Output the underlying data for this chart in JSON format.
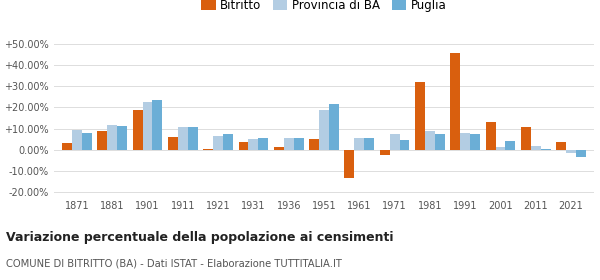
{
  "years": [
    1871,
    1881,
    1901,
    1911,
    1921,
    1931,
    1936,
    1951,
    1961,
    1971,
    1981,
    1991,
    2001,
    2011,
    2021
  ],
  "bitritto": [
    3.0,
    9.0,
    19.0,
    6.0,
    0.5,
    3.5,
    1.0,
    5.0,
    -13.5,
    -2.5,
    32.0,
    46.0,
    13.0,
    10.5,
    3.5
  ],
  "provincia_ba": [
    9.5,
    11.5,
    22.5,
    10.5,
    6.5,
    5.0,
    5.5,
    19.0,
    5.5,
    7.5,
    9.0,
    8.0,
    1.0,
    1.5,
    -1.5
  ],
  "puglia": [
    8.0,
    11.0,
    23.5,
    10.5,
    7.5,
    5.5,
    5.5,
    21.5,
    5.5,
    4.5,
    7.5,
    7.5,
    4.0,
    0.5,
    -3.5
  ],
  "bitritto_color": "#d95f0e",
  "provincia_color": "#b3cde3",
  "puglia_color": "#6baed6",
  "title1": "Variazione percentuale della popolazione ai censimenti",
  "title2": "COMUNE DI BITRITTO (BA) - Dati ISTAT - Elaborazione TUTTITALIA.IT",
  "ylim": [
    -22,
    55
  ],
  "yticks": [
    -20,
    -10,
    0,
    10,
    20,
    30,
    40,
    50
  ],
  "ytick_labels": [
    "-20.00%",
    "-10.00%",
    "0.00%",
    "+10.00%",
    "+20.00%",
    "+30.00%",
    "+40.00%",
    "+50.00%"
  ],
  "legend_labels": [
    "Bitritto",
    "Provincia di BA",
    "Puglia"
  ],
  "bar_width": 0.28,
  "background_color": "#ffffff",
  "grid_color": "#dddddd"
}
